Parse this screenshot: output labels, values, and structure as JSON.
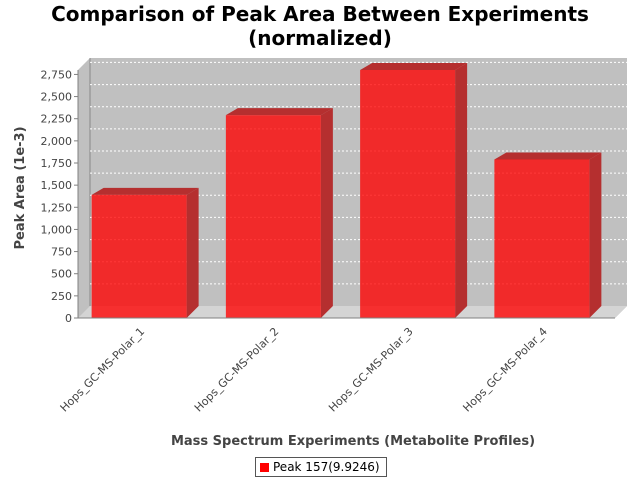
{
  "chart_data": {
    "type": "bar",
    "title_lines": [
      "Comparison of Peak Area Between Experiments",
      "(normalized)"
    ],
    "xlabel": "Mass Spectrum Experiments (Metabolite Profiles)",
    "ylabel": "Peak Area (1e-3)",
    "categories": [
      "Hops_GC-MS-Polar_1",
      "Hops_GC-MS-Polar_2",
      "Hops_GC-MS-Polar_3",
      "Hops_GC-MS-Polar_4"
    ],
    "series": [
      {
        "name": "Peak 157(9.9246)",
        "values": [
          1390,
          2290,
          2800,
          1790
        ],
        "color": "#ff0000"
      }
    ],
    "ylim": [
      0,
      2800
    ],
    "yticks": [
      0,
      250,
      500,
      750,
      1000,
      1250,
      1500,
      1750,
      2000,
      2250,
      2500,
      2750
    ],
    "ytick_labels": [
      "0",
      "250",
      "500",
      "750",
      "1,000",
      "1,250",
      "1,500",
      "1,750",
      "2,000",
      "2,250",
      "2,500",
      "2,750"
    ],
    "grid": true,
    "legend_position": "bottom",
    "render_style": "3d-bar",
    "plot_background": "#c0c0c0"
  }
}
